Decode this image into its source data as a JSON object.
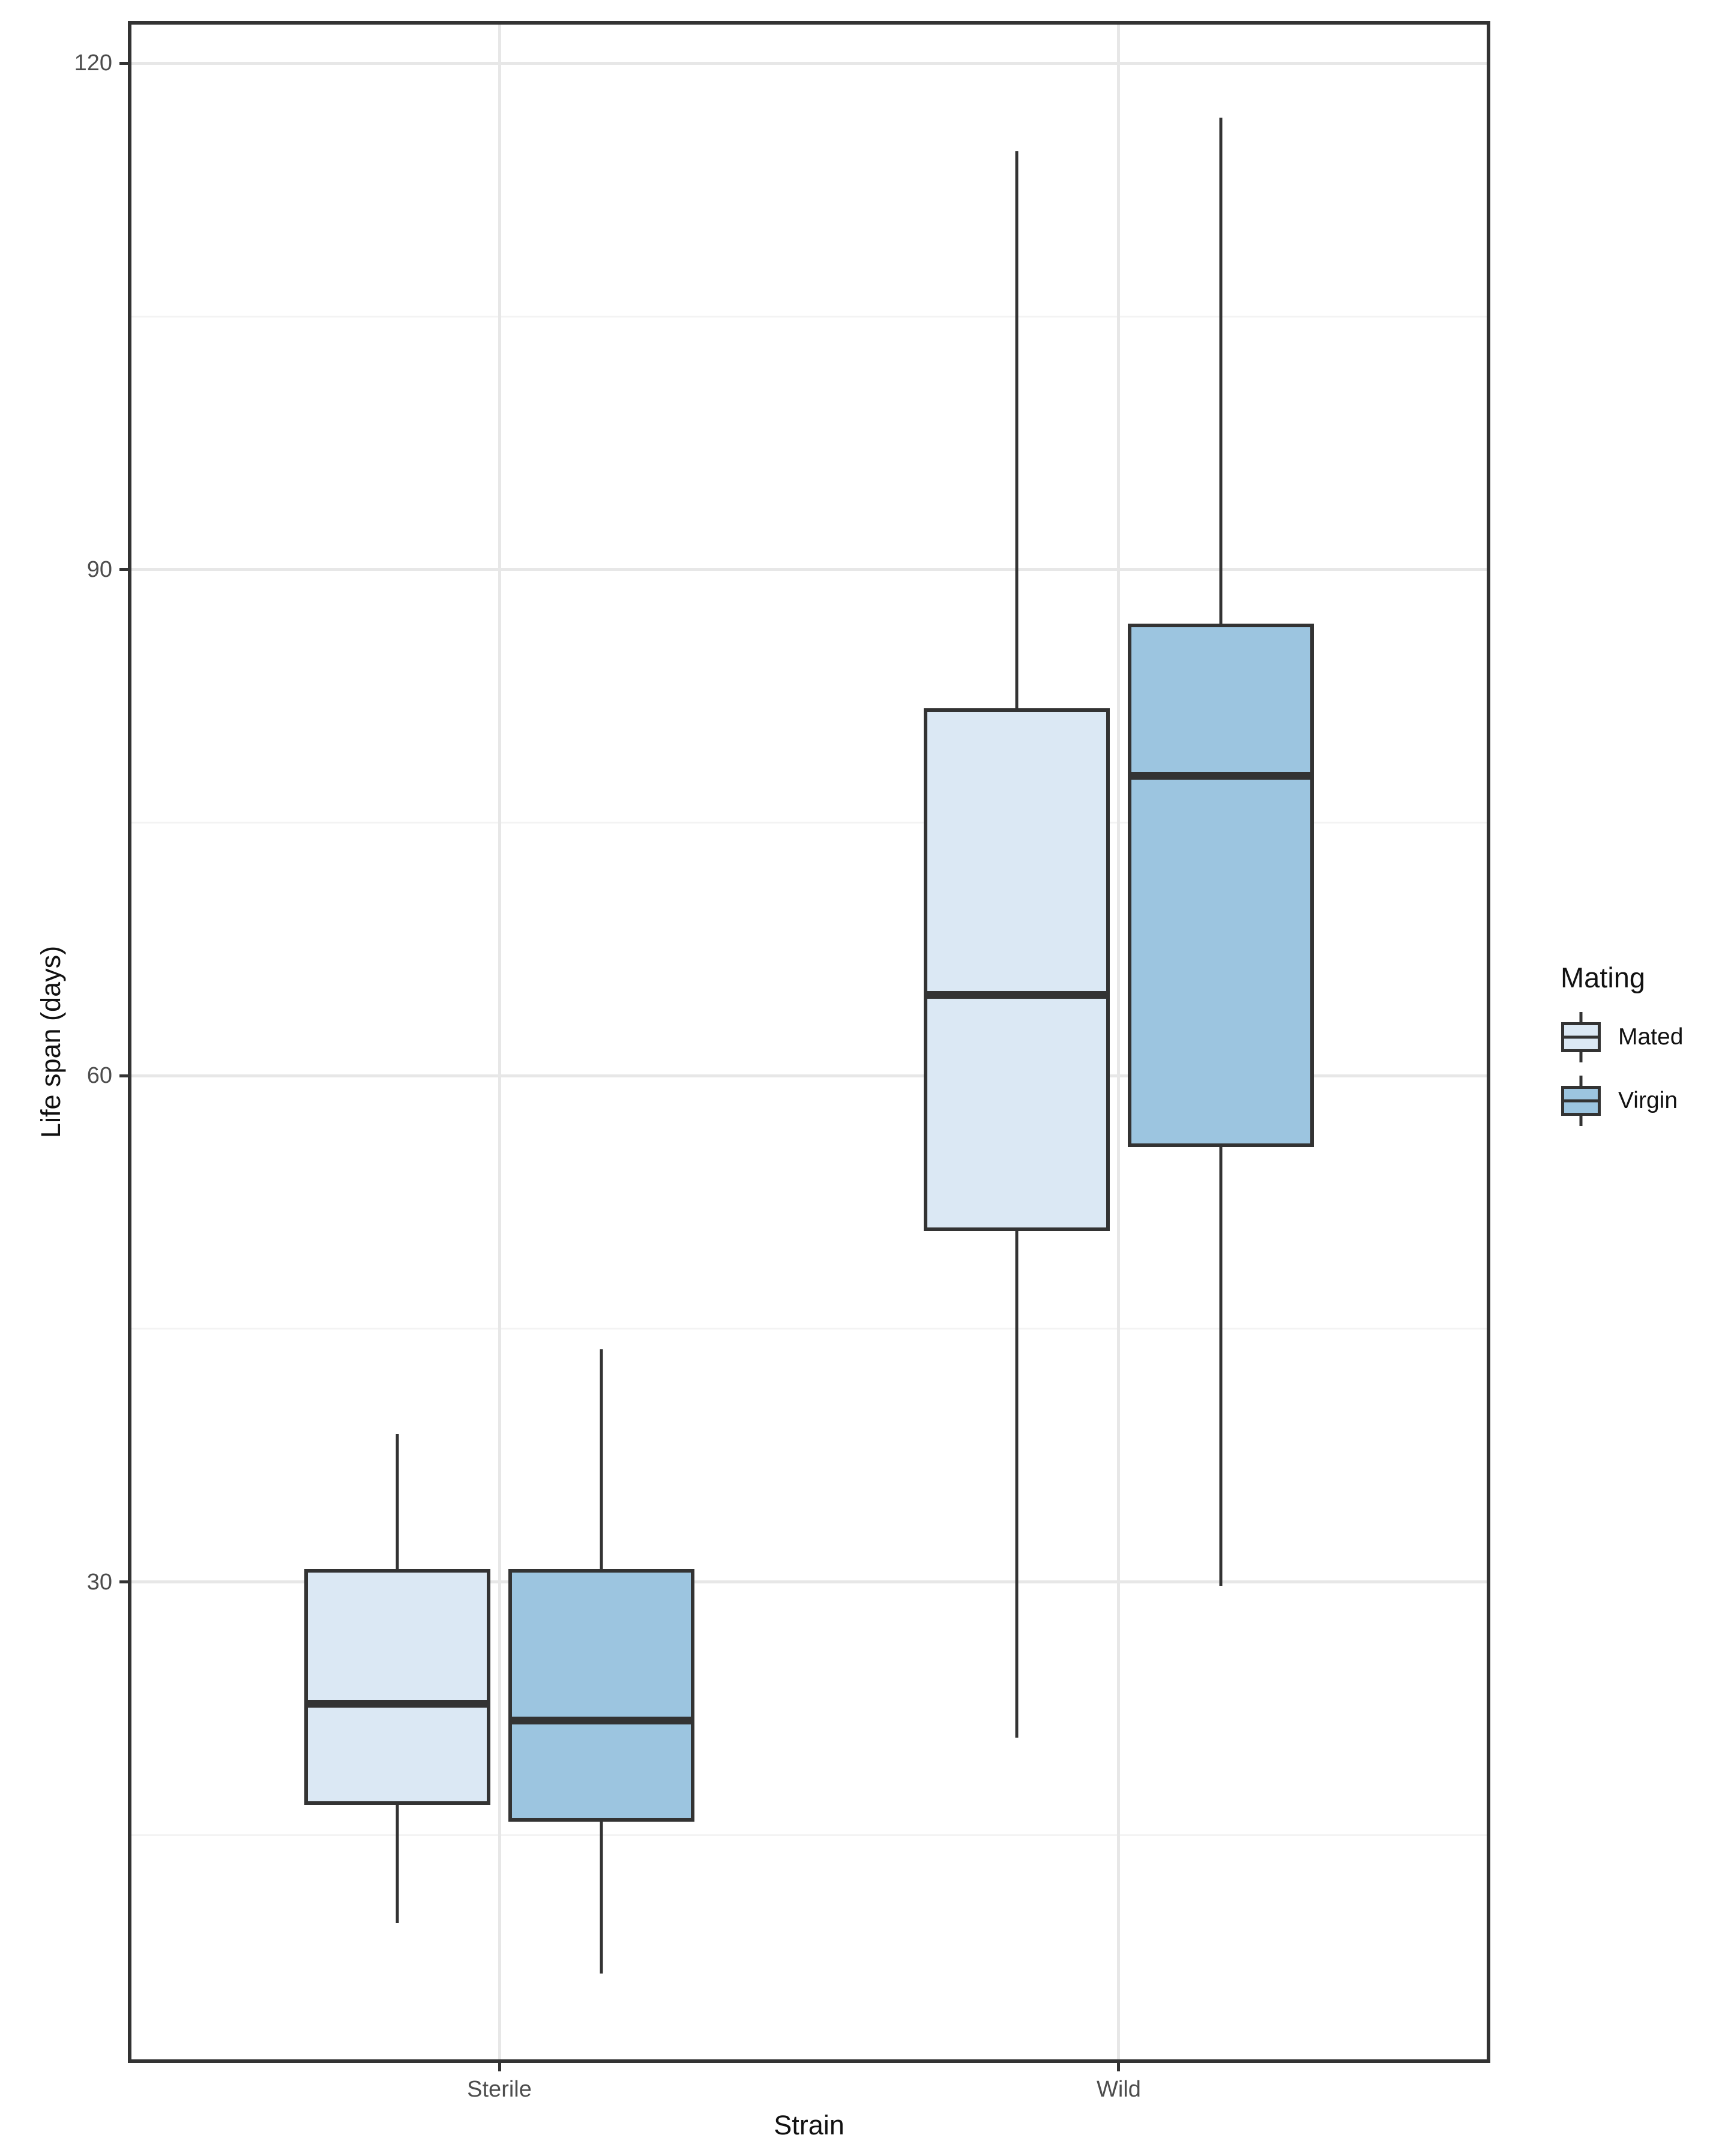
{
  "chart_data": {
    "type": "boxplot",
    "title": "",
    "xlabel": "Strain",
    "ylabel": "Life span (days)",
    "categories": [
      "Sterile",
      "Wild"
    ],
    "y_ticks": [
      120,
      90,
      60,
      30
    ],
    "y_minor_gridlines": [
      105,
      75,
      45,
      15
    ],
    "ylim": [
      1.5,
      122.5
    ],
    "grid": "on",
    "colors": {
      "box_outline": "#333333",
      "major_gridline": "#e7e7e7",
      "minor_gridline": "#f3f3f3",
      "tick_label": "#4d4d4d",
      "axis_title": "#111111"
    },
    "legend": {
      "title": "Mating",
      "position": "right",
      "entries": [
        {
          "label": "Mated",
          "color": "#dbe8f4"
        },
        {
          "label": "Virgin",
          "color": "#9cc5e0"
        }
      ]
    },
    "series": [
      {
        "name": "Mated",
        "color": "#dbe8f4",
        "boxes": [
          {
            "category": "Sterile",
            "whisker_low": 10,
            "q1": 17,
            "median": 23,
            "q3": 31,
            "whisker_high": 39
          },
          {
            "category": "Wild",
            "whisker_low": 21,
            "q1": 51,
            "median": 65,
            "q3": 82,
            "whisker_high": 115
          }
        ]
      },
      {
        "name": "Virgin",
        "color": "#9cc5e0",
        "boxes": [
          {
            "category": "Sterile",
            "whisker_low": 7,
            "q1": 16,
            "median": 22,
            "q3": 31,
            "whisker_high": 44
          },
          {
            "category": "Wild",
            "whisker_low": 30,
            "q1": 56,
            "median": 78,
            "q3": 87,
            "whisker_high": 117
          }
        ]
      }
    ]
  }
}
